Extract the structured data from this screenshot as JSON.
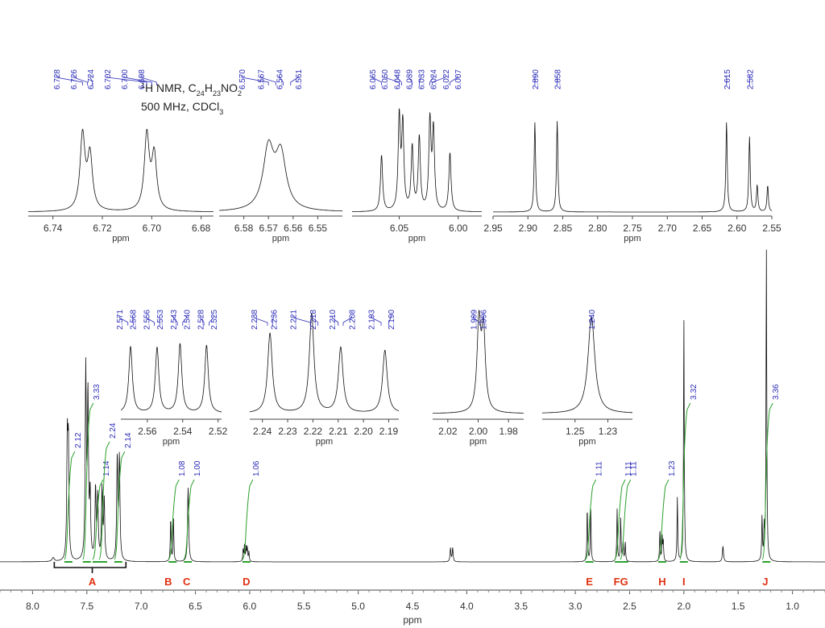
{
  "chart_data": {
    "type": "line",
    "title_lines": [
      "1H NMR, C24H23NO2",
      "500 MHz, CDCl3"
    ],
    "main": {
      "xlabel": "ppm",
      "xlim": [
        8.3,
        0.7
      ],
      "ticks": [
        "8.0",
        "7.5",
        "7.0",
        "6.5",
        "6.0",
        "5.5",
        "5.0",
        "4.5",
        "4.0",
        "3.5",
        "3.0",
        "2.5",
        "2.0",
        "1.5",
        "1.0"
      ],
      "peaks": [
        {
          "ppm": 7.81,
          "h": 0.02,
          "w": 0.012
        },
        {
          "ppm": 7.68,
          "h": 0.58,
          "w": 0.006
        },
        {
          "ppm": 7.67,
          "h": 0.55,
          "w": 0.006
        },
        {
          "ppm": 7.51,
          "h": 0.97,
          "w": 0.006
        },
        {
          "ppm": 7.49,
          "h": 0.82,
          "w": 0.006
        },
        {
          "ppm": 7.47,
          "h": 0.32,
          "w": 0.006
        },
        {
          "ppm": 7.42,
          "h": 0.36,
          "w": 0.006
        },
        {
          "ppm": 7.4,
          "h": 0.32,
          "w": 0.006
        },
        {
          "ppm": 7.36,
          "h": 0.36,
          "w": 0.006
        },
        {
          "ppm": 7.34,
          "h": 0.3,
          "w": 0.006
        },
        {
          "ppm": 7.22,
          "h": 0.52,
          "w": 0.006
        },
        {
          "ppm": 7.2,
          "h": 0.52,
          "w": 0.006
        },
        {
          "ppm": 6.728,
          "h": 0.22,
          "w": 0.004
        },
        {
          "ppm": 6.702,
          "h": 0.22,
          "w": 0.004
        },
        {
          "ppm": 6.567,
          "h": 0.38,
          "w": 0.006
        },
        {
          "ppm": 6.06,
          "h": 0.06,
          "w": 0.004
        },
        {
          "ppm": 6.048,
          "h": 0.08,
          "w": 0.004
        },
        {
          "ppm": 6.033,
          "h": 0.07,
          "w": 0.004
        },
        {
          "ppm": 6.022,
          "h": 0.07,
          "w": 0.004
        },
        {
          "ppm": 6.007,
          "h": 0.05,
          "w": 0.004
        },
        {
          "ppm": 4.15,
          "h": 0.07,
          "w": 0.005
        },
        {
          "ppm": 4.13,
          "h": 0.07,
          "w": 0.005
        },
        {
          "ppm": 2.89,
          "h": 0.27,
          "w": 0.004
        },
        {
          "ppm": 2.858,
          "h": 0.27,
          "w": 0.004
        },
        {
          "ppm": 2.615,
          "h": 0.27,
          "w": 0.004
        },
        {
          "ppm": 2.582,
          "h": 0.22,
          "w": 0.004
        },
        {
          "ppm": 2.56,
          "h": 0.1,
          "w": 0.004
        },
        {
          "ppm": 2.54,
          "h": 0.1,
          "w": 0.004
        },
        {
          "ppm": 2.221,
          "h": 0.16,
          "w": 0.004
        },
        {
          "ppm": 2.2,
          "h": 0.12,
          "w": 0.004
        },
        {
          "ppm": 2.19,
          "h": 0.1,
          "w": 0.004
        },
        {
          "ppm": 2.06,
          "h": 0.33,
          "w": 0.004
        },
        {
          "ppm": 2.0,
          "h": 1.25,
          "w": 0.004
        },
        {
          "ppm": 1.64,
          "h": 0.08,
          "w": 0.006
        },
        {
          "ppm": 1.28,
          "h": 0.22,
          "w": 0.004
        },
        {
          "ppm": 1.26,
          "h": 0.15,
          "w": 0.004
        },
        {
          "ppm": 1.24,
          "h": 1.62,
          "w": 0.004
        }
      ],
      "letters": [
        {
          "ppm": 7.45,
          "t": "A"
        },
        {
          "ppm": 6.75,
          "t": "B"
        },
        {
          "ppm": 6.58,
          "t": "C"
        },
        {
          "ppm": 6.03,
          "t": "D"
        },
        {
          "ppm": 2.87,
          "t": "E"
        },
        {
          "ppm": 2.58,
          "t": "FG"
        },
        {
          "ppm": 2.2,
          "t": "H"
        },
        {
          "ppm": 2.0,
          "t": "I"
        },
        {
          "ppm": 1.25,
          "t": "J"
        }
      ],
      "integrals": [
        {
          "ppm": 7.67,
          "t": "2.12",
          "ly": 2
        },
        {
          "ppm": 7.5,
          "t": "3.33",
          "ly": 0
        },
        {
          "ppm": 7.41,
          "t": "1.14",
          "ly": 3
        },
        {
          "ppm": 7.35,
          "t": "2.24",
          "ly": 1
        },
        {
          "ppm": 7.21,
          "t": "2.14",
          "ly": 2
        },
        {
          "ppm": 6.71,
          "t": "1.08",
          "ly": 3
        },
        {
          "ppm": 6.57,
          "t": "1.00",
          "ly": 3
        },
        {
          "ppm": 6.03,
          "t": "1.06",
          "ly": 3
        },
        {
          "ppm": 2.87,
          "t": "1.11",
          "ly": 3
        },
        {
          "ppm": 2.6,
          "t": "1.11",
          "ly": 3
        },
        {
          "ppm": 2.55,
          "t": "1.11",
          "ly": 3
        },
        {
          "ppm": 2.2,
          "t": "1.23",
          "ly": 3
        },
        {
          "ppm": 2.0,
          "t": "3.32",
          "ly": 0
        },
        {
          "ppm": 1.24,
          "t": "3.36",
          "ly": 0
        }
      ]
    },
    "insets": [
      {
        "id": "B",
        "xlim": [
          6.75,
          6.675
        ],
        "ticks": [
          "6.74",
          "6.72",
          "6.70",
          "6.68"
        ],
        "xlabel": "ppm",
        "peaks": [
          {
            "ppm": 6.728,
            "h": 0.62,
            "w": 0.0012
          },
          {
            "ppm": 6.725,
            "h": 0.45,
            "w": 0.0012
          },
          {
            "ppm": 6.702,
            "h": 0.62,
            "w": 0.0012
          },
          {
            "ppm": 6.699,
            "h": 0.45,
            "w": 0.0012
          }
        ],
        "labels": [
          "6.728",
          "6.726",
          "6.724",
          "6.702",
          "6.700",
          "6.698"
        ],
        "label_ppm": [
          6.728,
          6.726,
          6.724,
          6.702,
          6.7,
          6.698
        ]
      },
      {
        "id": "C",
        "xlim": [
          6.59,
          6.54
        ],
        "ticks": [
          "6.58",
          "6.57",
          "6.56",
          "6.55"
        ],
        "xlabel": "ppm",
        "peaks": [
          {
            "ppm": 6.57,
            "h": 0.5,
            "w": 0.0026
          },
          {
            "ppm": 6.565,
            "h": 0.45,
            "w": 0.0026
          }
        ],
        "labels": [
          "6.570",
          "6.567",
          "6.564",
          "6.561"
        ],
        "label_ppm": [
          6.57,
          6.567,
          6.564,
          6.561
        ]
      },
      {
        "id": "D",
        "xlim": [
          6.09,
          5.98
        ],
        "ticks": [
          "6.05",
          "6.00"
        ],
        "xlabel": "ppm",
        "peaks": [
          {
            "ppm": 6.065,
            "h": 0.46,
            "w": 0.0011
          },
          {
            "ppm": 6.05,
            "h": 0.76,
            "w": 0.0011
          },
          {
            "ppm": 6.047,
            "h": 0.7,
            "w": 0.0011
          },
          {
            "ppm": 6.039,
            "h": 0.52,
            "w": 0.0011
          },
          {
            "ppm": 6.033,
            "h": 0.6,
            "w": 0.0011
          },
          {
            "ppm": 6.024,
            "h": 0.73,
            "w": 0.0011
          },
          {
            "ppm": 6.021,
            "h": 0.65,
            "w": 0.0011
          },
          {
            "ppm": 6.007,
            "h": 0.48,
            "w": 0.0011
          }
        ],
        "labels": [
          "6.065",
          "6.050",
          "6.048",
          "6.039",
          "6.033",
          "6.024",
          "6.022",
          "6.007"
        ],
        "label_ppm": [
          6.065,
          6.05,
          6.048,
          6.039,
          6.033,
          6.024,
          6.022,
          6.007
        ]
      },
      {
        "id": "EF",
        "xlim": [
          2.95,
          2.55
        ],
        "ticks": [
          "2.95",
          "2.90",
          "2.85",
          "2.80",
          "2.75",
          "2.70",
          "2.65",
          "2.60",
          "2.55"
        ],
        "xlabel": "ppm",
        "peaks": [
          {
            "ppm": 2.89,
            "h": 0.74,
            "w": 0.0012
          },
          {
            "ppm": 2.858,
            "h": 0.75,
            "w": 0.0012
          },
          {
            "ppm": 2.615,
            "h": 0.75,
            "w": 0.0012
          },
          {
            "ppm": 2.582,
            "h": 0.62,
            "w": 0.0012
          },
          {
            "ppm": 2.571,
            "h": 0.22,
            "w": 0.0012
          },
          {
            "ppm": 2.556,
            "h": 0.22,
            "w": 0.0012
          }
        ],
        "labels": [
          "2.890",
          "2.858",
          "2.615",
          "2.582"
        ],
        "label_ppm": [
          2.89,
          2.858,
          2.615,
          2.582
        ]
      },
      {
        "id": "G",
        "xlim": [
          2.575,
          2.518
        ],
        "ticks": [
          "2.56",
          "2.54",
          "2.52"
        ],
        "xlabel": "ppm",
        "peaks": [
          {
            "ppm": 2.5695,
            "h": 0.55,
            "w": 0.0012
          },
          {
            "ppm": 2.5545,
            "h": 0.54,
            "w": 0.0012
          },
          {
            "ppm": 2.5415,
            "h": 0.57,
            "w": 0.0012
          },
          {
            "ppm": 2.5265,
            "h": 0.56,
            "w": 0.0012
          }
        ],
        "labels": [
          "2.571",
          "2.568",
          "2.556",
          "2.553",
          "2.543",
          "2.540",
          "2.528",
          "2.525"
        ],
        "label_ppm": [
          2.571,
          2.568,
          2.556,
          2.553,
          2.543,
          2.54,
          2.528,
          2.525
        ]
      },
      {
        "id": "H",
        "xlim": [
          2.245,
          2.186
        ],
        "ticks": [
          "2.24",
          "2.23",
          "2.22",
          "2.21",
          "2.20",
          "2.19"
        ],
        "xlabel": "ppm",
        "peaks": [
          {
            "ppm": 2.237,
            "h": 0.66,
            "w": 0.0011
          },
          {
            "ppm": 2.2205,
            "h": 0.82,
            "w": 0.0011
          },
          {
            "ppm": 2.209,
            "h": 0.54,
            "w": 0.0011
          },
          {
            "ppm": 2.1915,
            "h": 0.52,
            "w": 0.0011
          }
        ],
        "labels": [
          "2.238",
          "2.236",
          "2.221",
          "2.218",
          "2.210",
          "2.208",
          "2.193",
          "2.190"
        ],
        "label_ppm": [
          2.238,
          2.236,
          2.221,
          2.218,
          2.21,
          2.208,
          2.193,
          2.19
        ]
      },
      {
        "id": "I",
        "xlim": [
          2.03,
          1.97
        ],
        "ticks": [
          "2.02",
          "2.00",
          "1.98"
        ],
        "xlabel": "ppm",
        "peaks": [
          {
            "ppm": 1.9995,
            "h": 0.72,
            "w": 0.0015
          },
          {
            "ppm": 1.9965,
            "h": 0.65,
            "w": 0.0015
          }
        ],
        "labels": [
          "1.999",
          "1.996"
        ],
        "label_ppm": [
          1.999,
          1.996
        ]
      },
      {
        "id": "J",
        "xlim": [
          1.27,
          1.215
        ],
        "ticks": [
          "1.25",
          "1.23"
        ],
        "xlabel": "ppm",
        "peaks": [
          {
            "ppm": 1.24,
            "h": 0.8,
            "w": 0.0025
          }
        ],
        "labels": [
          "1.240"
        ],
        "label_ppm": [
          1.24
        ]
      }
    ]
  }
}
